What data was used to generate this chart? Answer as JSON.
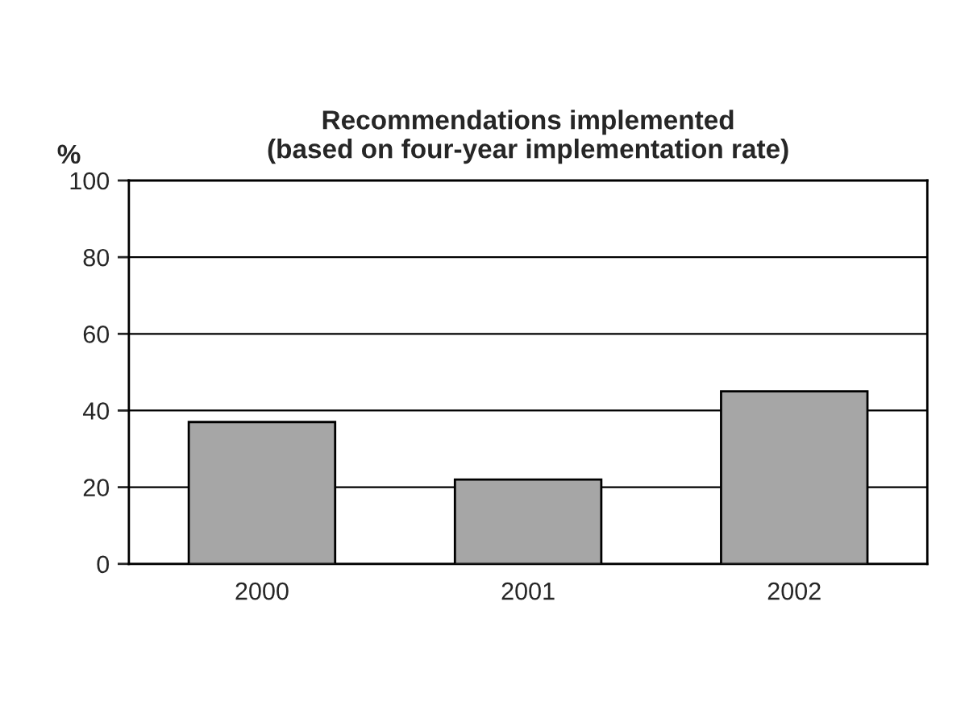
{
  "chart_data": {
    "type": "bar",
    "title": "Recommendations implemented\n(based on four-year implementation rate)",
    "ylabel": "%",
    "categories": [
      "2000",
      "2001",
      "2002"
    ],
    "values": [
      37,
      22,
      45
    ],
    "color": "#a6a6a6",
    "ylim": [
      0,
      100
    ],
    "yticks": [
      0,
      20,
      40,
      60,
      80,
      100
    ],
    "grid": "y",
    "legend": false
  }
}
